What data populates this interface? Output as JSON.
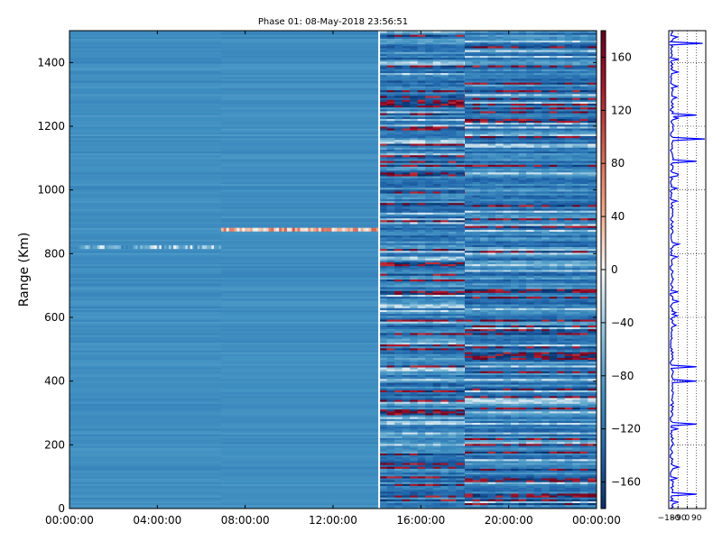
{
  "chart_data": [
    {
      "type": "heatmap",
      "title": "Phase 01: 08-May-2018 23:56:51",
      "ylabel": "Range (Km)",
      "xlabel": "",
      "x_ticks": [
        "00:00:00",
        "04:00:00",
        "08:00:00",
        "12:00:00",
        "16:00:00",
        "20:00:00",
        "00:00:00"
      ],
      "x_range_hours": [
        0,
        24
      ],
      "y_ticks": [
        0,
        200,
        400,
        600,
        800,
        1000,
        1200,
        1400
      ],
      "ylim": [
        0,
        1500
      ],
      "color_range": [
        -180,
        180
      ],
      "colorbar_ticks": [
        160,
        120,
        80,
        40,
        0,
        -40,
        -80,
        -120,
        -160
      ],
      "colormap": [
        "#08306b",
        "#2166ac",
        "#4393c3",
        "#92c5de",
        "#f7f7f7",
        "#f4a582",
        "#d6604d",
        "#b2182b",
        "#67001f"
      ],
      "data_gap_hours": 14.1,
      "segments": [
        {
          "start_hours": 0,
          "end_hours": 14.1,
          "typical_phase": -95,
          "variability": "low"
        },
        {
          "start_hours": 14.1,
          "end_hours": 24,
          "typical_phase": -110,
          "variability": "high"
        }
      ],
      "features": [
        {
          "range_km": 878,
          "start_hours": 6.9,
          "end_hours": 14.1,
          "phase": 60
        },
        {
          "range_km": 823,
          "start_hours": 0.4,
          "end_hours": 6.9,
          "phase": -40
        }
      ],
      "grid": false
    },
    {
      "type": "line",
      "title": "",
      "x_ticks": [
        "−180",
        "−90",
        "0",
        "90"
      ],
      "xlim": [
        -180,
        180
      ],
      "ylim": [
        0,
        1500
      ],
      "grid": true,
      "line_color": "#0000ff",
      "spikes": [
        {
          "range_km": 45,
          "phase": 90
        },
        {
          "range_km": 265,
          "phase": 90
        },
        {
          "range_km": 400,
          "phase": 90
        },
        {
          "range_km": 445,
          "phase": 90
        },
        {
          "range_km": 1090,
          "phase": 90
        },
        {
          "range_km": 1160,
          "phase": 170
        },
        {
          "range_km": 1235,
          "phase": 90
        },
        {
          "range_km": 1460,
          "phase": 150
        }
      ]
    }
  ]
}
